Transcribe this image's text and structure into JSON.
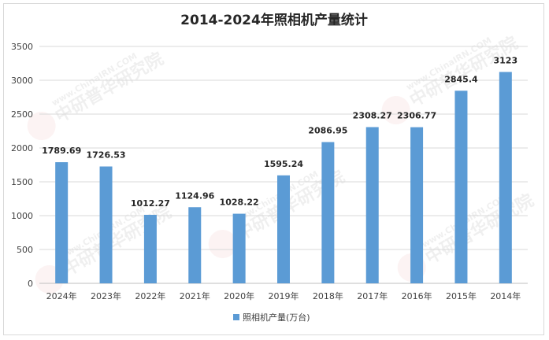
{
  "watermark": {
    "brand_cn": "中研普华研究院",
    "brand_en": "www.ChinaIRN.COM",
    "logo_text": "CIRN"
  },
  "chart_data": {
    "type": "bar",
    "title": "2014-2024年照相机产量统计",
    "categories": [
      "2024年",
      "2023年",
      "2022年",
      "2021年",
      "2020年",
      "2019年",
      "2018年",
      "2017年",
      "2016年",
      "2015年",
      "2014年"
    ],
    "series": [
      {
        "name": "照相机产量(万台)",
        "values": [
          1789.69,
          1726.53,
          1012.27,
          1124.96,
          1028.22,
          1595.24,
          2086.95,
          2308.27,
          2306.77,
          2845.4,
          3123
        ],
        "labels": [
          "1789.69",
          "1726.53",
          "1012.27",
          "1124.96",
          "1028.22",
          "1595.24",
          "2086.95",
          "2308.27",
          "2306.77",
          "2845.4",
          "3123"
        ],
        "color": "#5b9bd5"
      }
    ],
    "yticks": [
      "0",
      "500",
      "1000",
      "1500",
      "2000",
      "2500",
      "3000",
      "3500"
    ],
    "ylim": [
      0,
      3500
    ],
    "grid": true,
    "legend_position": "bottom"
  }
}
